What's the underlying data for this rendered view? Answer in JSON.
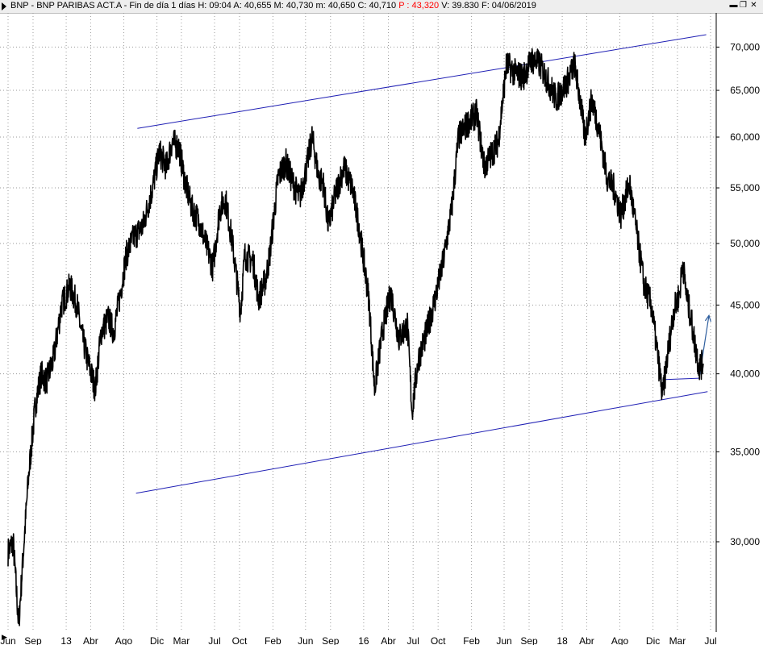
{
  "header": {
    "symbol": "BNP",
    "title_before_p": "BNP - BNP PARIBAS ACT.A - Fin de día 1 días  H: 09:04  A: 40,655  M: 40,730  m: 40,650  C: 40,710  ",
    "p_value": "P : 43,320",
    "title_after_p": "  V: 39.830  F: 04/06/2019",
    "icons": [
      "minimize-icon",
      "restore-icon",
      "close-icon"
    ]
  },
  "colors": {
    "price_line": "#000000",
    "trend_line": "#1f1fb4",
    "projection": "#2e5e9e",
    "grid": "#9a9a9a",
    "p_highlight": "#ff0000"
  },
  "chart_data": {
    "type": "line",
    "scale": "log",
    "ylim": [
      25000,
      73000
    ],
    "y_ticks": [
      "70,000",
      "65,000",
      "60,000",
      "55,000",
      "50,000",
      "45,000",
      "40,000",
      "35,000",
      "30,000"
    ],
    "y_tick_values": [
      70000,
      65000,
      60000,
      55000,
      50000,
      45000,
      40000,
      35000,
      30000
    ],
    "x_ticks": [
      "Jun",
      "Sep",
      "13",
      "Abr",
      "Ago",
      "Dic",
      "Mar",
      "Jul",
      "Oct",
      "Feb",
      "Jun",
      "Sep",
      "16",
      "Abr",
      "Jul",
      "Oct",
      "Feb",
      "Jun",
      "Sep",
      "18",
      "Abr",
      "Ago",
      "Dic",
      "Mar",
      "Jul"
    ],
    "x_tick_dates": [
      "2012-06",
      "2012-09",
      "2013-01",
      "2013-04",
      "2013-08",
      "2013-12",
      "2014-03",
      "2014-07",
      "2014-10",
      "2015-02",
      "2015-06",
      "2015-09",
      "2016-01",
      "2016-04",
      "2016-07",
      "2016-10",
      "2017-02",
      "2017-06",
      "2017-09",
      "2018-01",
      "2018-04",
      "2018-08",
      "2018-12",
      "2019-03",
      "2019-07"
    ],
    "series": [
      {
        "x": [
          "2012-06-01",
          "2012-06-20",
          "2012-07-10",
          "2012-07-25",
          "2012-08-15",
          "2012-09-10",
          "2012-10-01",
          "2012-10-20",
          "2012-11-15",
          "2012-12-15",
          "2013-01-15",
          "2013-02-10",
          "2013-02-25",
          "2013-03-20",
          "2013-04-18",
          "2013-05-10",
          "2013-06-05",
          "2013-06-25",
          "2013-07-20",
          "2013-08-10",
          "2013-09-05",
          "2013-10-10",
          "2013-11-15",
          "2013-12-10",
          "2014-01-05",
          "2014-01-25",
          "2014-02-20",
          "2014-03-15",
          "2014-04-10",
          "2014-05-05",
          "2014-06-05",
          "2014-06-25",
          "2014-07-20",
          "2014-08-10",
          "2014-09-05",
          "2014-10-05",
          "2014-10-20",
          "2014-11-20",
          "2014-12-10",
          "2015-01-05",
          "2015-01-20",
          "2015-02-20",
          "2015-03-20",
          "2015-04-15",
          "2015-05-10",
          "2015-06-05",
          "2015-06-25",
          "2015-07-20",
          "2015-08-05",
          "2015-08-24",
          "2015-09-20",
          "2015-10-20",
          "2015-11-20",
          "2015-12-15",
          "2016-01-20",
          "2016-02-10",
          "2016-03-10",
          "2016-04-10",
          "2016-05-10",
          "2016-06-10",
          "2016-06-27",
          "2016-07-20",
          "2016-08-20",
          "2016-09-20",
          "2016-10-20",
          "2016-11-20",
          "2016-12-15",
          "2017-01-20",
          "2017-02-20",
          "2017-03-20",
          "2017-04-20",
          "2017-05-10",
          "2017-06-10",
          "2017-07-10",
          "2017-08-10",
          "2017-09-10",
          "2017-10-10",
          "2017-11-10",
          "2017-12-10",
          "2018-01-20",
          "2018-02-15",
          "2018-03-10",
          "2018-03-25",
          "2018-04-20",
          "2018-05-15",
          "2018-06-15",
          "2018-07-10",
          "2018-08-05",
          "2018-09-05",
          "2018-10-05",
          "2018-10-30",
          "2018-11-25",
          "2018-12-20",
          "2019-01-05",
          "2019-01-25",
          "2019-02-15",
          "2019-03-10",
          "2019-03-20",
          "2019-04-05",
          "2019-04-20",
          "2019-05-05",
          "2019-05-20",
          "2019-06-04"
        ],
        "y": [
          29500,
          30000,
          26000,
          29000,
          33500,
          38000,
          40000,
          39500,
          41000,
          45000,
          46500,
          45000,
          43000,
          41000,
          39000,
          43000,
          44000,
          43000,
          46000,
          49000,
          50500,
          51500,
          55000,
          58500,
          57000,
          59500,
          59000,
          55500,
          53000,
          52000,
          49500,
          48000,
          53000,
          54000,
          50000,
          44500,
          49000,
          48500,
          45500,
          47000,
          49000,
          56000,
          57500,
          55500,
          54000,
          57000,
          60000,
          56000,
          55500,
          51500,
          54500,
          57000,
          55000,
          51500,
          45500,
          39000,
          43000,
          46000,
          42500,
          43500,
          37500,
          41000,
          43000,
          45500,
          48500,
          53000,
          60000,
          61500,
          62500,
          57000,
          58500,
          59500,
          68000,
          67000,
          66500,
          68500,
          68000,
          66000,
          64000,
          66000,
          68000,
          63500,
          60000,
          64000,
          61000,
          56000,
          55000,
          52500,
          55500,
          50500,
          46500,
          45000,
          41000,
          38500,
          41500,
          44500,
          46000,
          48500,
          45500,
          44000,
          42000,
          40500,
          40710
        ]
      }
    ],
    "trend_lines": [
      {
        "from": [
          "2013-09-20",
          60900
        ],
        "to": [
          "2019-06-15",
          71500
        ]
      },
      {
        "from": [
          "2013-09-15",
          32600
        ],
        "to": [
          "2019-06-20",
          38800
        ]
      },
      {
        "from": [
          "2019-01-05",
          39600
        ],
        "to": [
          "2019-05-20",
          39700
        ]
      }
    ],
    "projection": {
      "from": [
        "2019-05-20",
        39700
      ],
      "to": [
        "2019-06-25",
        44200
      ]
    },
    "grid": true,
    "legend": "none"
  }
}
